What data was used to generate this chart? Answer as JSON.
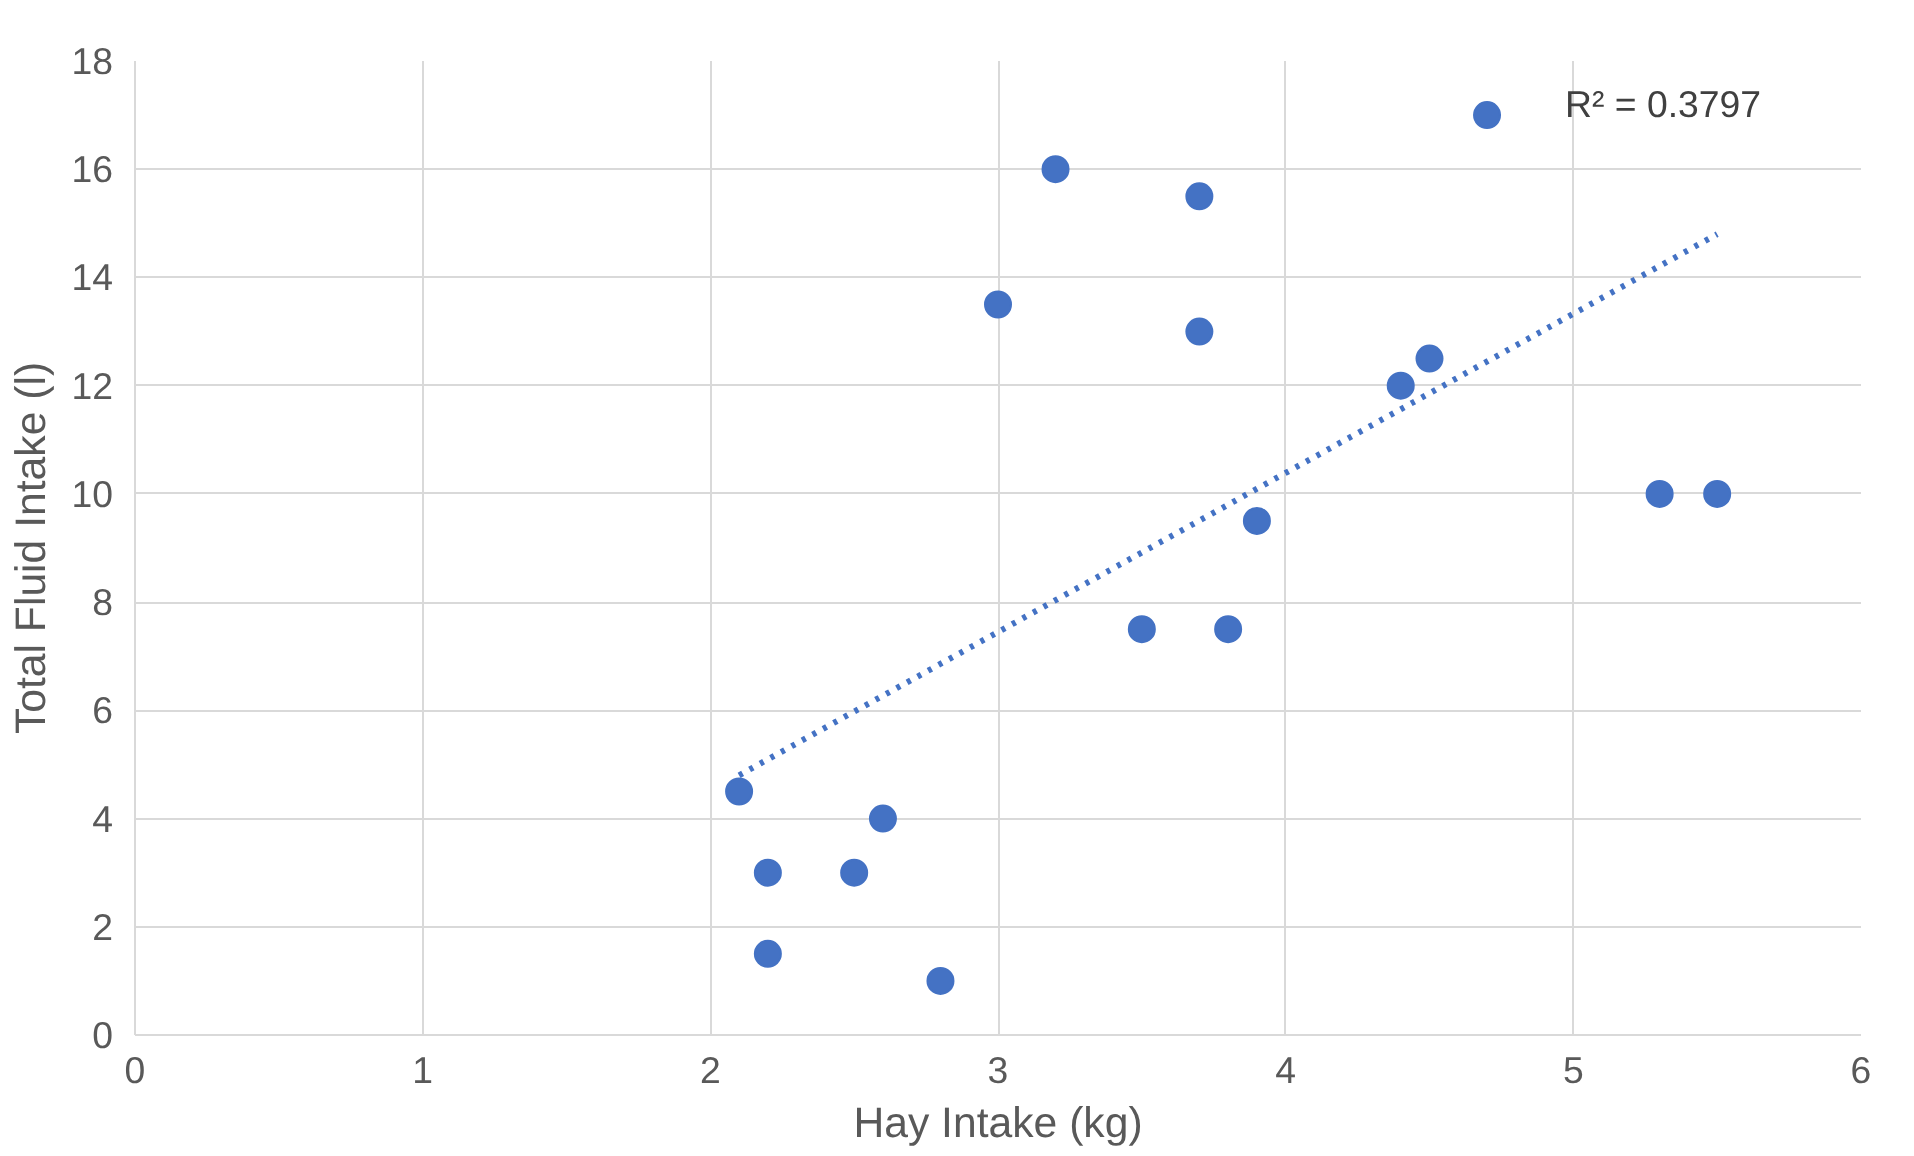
{
  "chart_data": {
    "type": "scatter",
    "xlabel": "Hay Intake (kg)",
    "ylabel": "Total Fluid Intake (l)",
    "xlim": [
      0,
      6
    ],
    "xticks": [
      0,
      1,
      2,
      3,
      4,
      5,
      6
    ],
    "ylim": [
      0,
      18
    ],
    "yticks": [
      0,
      2,
      4,
      6,
      8,
      10,
      12,
      14,
      16,
      18
    ],
    "grid": true,
    "series": [
      {
        "color": "#4472c4",
        "marker": "circle",
        "x": [
          2.1,
          2.2,
          2.2,
          2.5,
          2.6,
          2.8,
          3.0,
          3.2,
          3.5,
          3.7,
          3.7,
          3.8,
          3.9,
          4.4,
          4.5,
          4.7,
          5.3,
          5.5
        ],
        "values": [
          4.5,
          3,
          1.5,
          3,
          4,
          1,
          13.5,
          16,
          7.5,
          15.5,
          13,
          7.5,
          9.5,
          12,
          12.5,
          17,
          10,
          10
        ]
      },
      {
        "type": "line",
        "color": "#4472c4",
        "line_style": "dotted",
        "x": [
          2.1,
          5.5
        ],
        "values": [
          4.8,
          14.8
        ]
      }
    ],
    "annotations": [
      "R² = 0.3797"
    ]
  }
}
